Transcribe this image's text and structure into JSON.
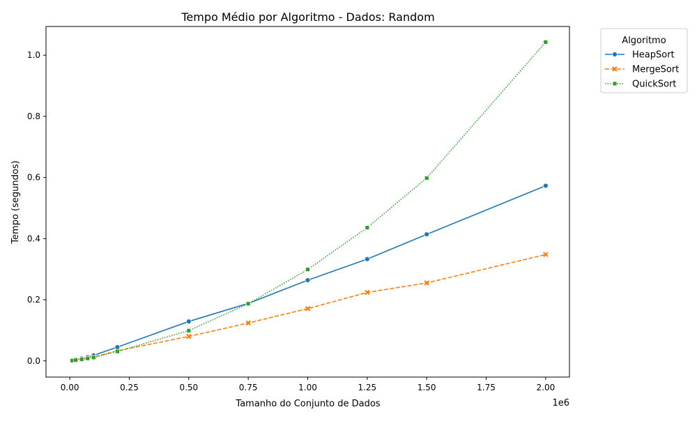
{
  "chart_data": {
    "type": "line",
    "title": "Tempo Médio por Algoritmo - Dados: Random",
    "xlabel": "Tamanho do Conjunto de Dados",
    "ylabel": "Tempo (segundos)",
    "x_offset_label": "1e6",
    "x_ticks": [
      0,
      250000,
      500000,
      750000,
      1000000,
      1250000,
      1500000,
      1750000,
      2000000
    ],
    "x_tick_labels": [
      "0.00",
      "0.25",
      "0.50",
      "0.75",
      "1.00",
      "1.25",
      "1.50",
      "1.75",
      "2.00"
    ],
    "y_ticks": [
      0.0,
      0.2,
      0.4,
      0.6,
      0.8,
      1.0
    ],
    "y_tick_labels": [
      "0.0",
      "0.2",
      "0.4",
      "0.6",
      "0.8",
      "1.0"
    ],
    "xlim": [
      -100000,
      2100000
    ],
    "ylim": [
      -0.053,
      1.094
    ],
    "grid": false,
    "legend": {
      "title": "Algoritmo",
      "placement": "outside-top-right"
    },
    "x": [
      10000,
      25000,
      50000,
      75000,
      100000,
      200000,
      500000,
      750000,
      1000000,
      1250000,
      1500000,
      2000000
    ],
    "series": [
      {
        "name": "HeapSort",
        "color": "#1f77b4",
        "marker": "circle",
        "dash": "solid",
        "values": [
          0.0015,
          0.004,
          0.008,
          0.012,
          0.018,
          0.045,
          0.129,
          0.188,
          0.264,
          0.333,
          0.414,
          0.573
        ]
      },
      {
        "name": "MergeSort",
        "color": "#ff7f0e",
        "marker": "x",
        "dash": "dashed",
        "values": [
          0.0012,
          0.003,
          0.006,
          0.009,
          0.013,
          0.033,
          0.08,
          0.124,
          0.171,
          0.224,
          0.255,
          0.348
        ]
      },
      {
        "name": "QuickSort",
        "color": "#2ca02c",
        "marker": "square",
        "dash": "dotted",
        "values": [
          0.001,
          0.0025,
          0.005,
          0.008,
          0.011,
          0.031,
          0.099,
          0.187,
          0.299,
          0.436,
          0.598,
          1.043
        ]
      }
    ]
  }
}
